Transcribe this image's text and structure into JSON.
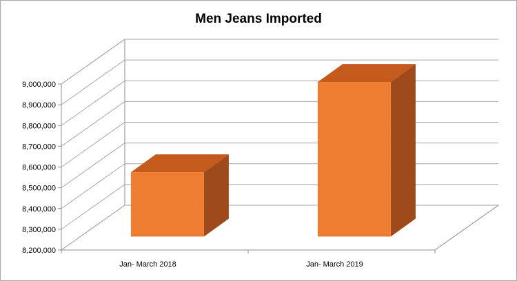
{
  "chart_data": {
    "type": "bar",
    "title": "Men Jeans Imported",
    "xlabel": "",
    "ylabel": "",
    "categories": [
      "Jan- March 2018",
      "Jan- March 2019"
    ],
    "series": [
      {
        "values": [
          8510000,
          8945000
        ]
      }
    ],
    "ylim": [
      8200000,
      9000000
    ],
    "yticks": [
      "8,200,000",
      "8,300,000",
      "8,400,000",
      "8,500,000",
      "8,600,000",
      "8,700,000",
      "8,800,000",
      "8,900,000",
      "9,000,000"
    ],
    "ytick_values": [
      8200000,
      8300000,
      8400000,
      8500000,
      8600000,
      8700000,
      8800000,
      8900000,
      9000000
    ],
    "grid": true,
    "legend": "none",
    "three_d": true,
    "colors": {
      "bar_front": "#ed7d31",
      "bar_top": "#c55a1d",
      "bar_side": "#9e4a1a",
      "grid": "#a6a6a6",
      "border": "#a6a6a6"
    }
  }
}
